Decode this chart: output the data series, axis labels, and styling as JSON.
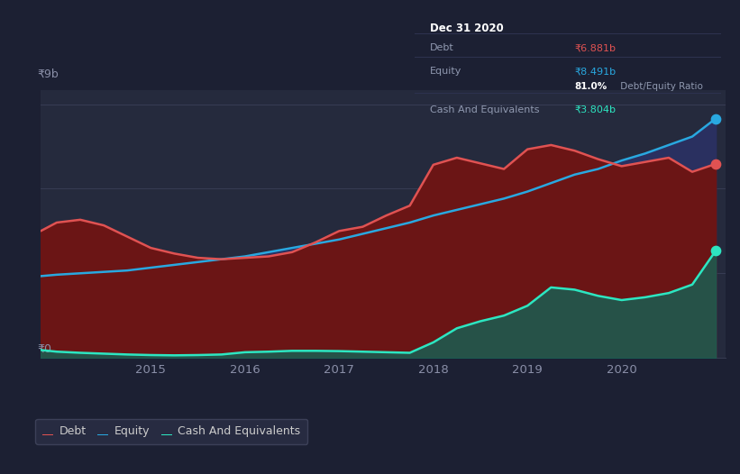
{
  "bg_color": "#1c2033",
  "plot_bg_color": "#252a3d",
  "grid_color": "#383d54",
  "debt_color": "#e05252",
  "equity_color": "#29a8e0",
  "cash_color": "#2de6c1",
  "debt_fill": "#6b1515",
  "equity_fill": "#2a3060",
  "cash_fill": "#1a5e52",
  "ylabel_9b": "₹9b",
  "ylabel_0": "₹0",
  "ylim": [
    0,
    9.5
  ],
  "xlim": [
    2013.83,
    2021.1
  ],
  "tooltip": {
    "date": "Dec 31 2020",
    "debt_label": "Debt",
    "debt_val": "₹6.881b",
    "equity_label": "Equity",
    "equity_val": "₹8.491b",
    "ratio": "81.0%",
    "ratio_suffix": " Debt/Equity Ratio",
    "cash_label": "Cash And Equivalents",
    "cash_val": "₹3.804b"
  },
  "dates": [
    2013.83,
    2014.0,
    2014.25,
    2014.5,
    2014.75,
    2015.0,
    2015.25,
    2015.5,
    2015.75,
    2016.0,
    2016.25,
    2016.5,
    2016.75,
    2017.0,
    2017.25,
    2017.5,
    2017.75,
    2018.0,
    2018.25,
    2018.5,
    2018.75,
    2019.0,
    2019.25,
    2019.5,
    2019.75,
    2020.0,
    2020.25,
    2020.5,
    2020.75,
    2021.0
  ],
  "debt": [
    4.5,
    4.8,
    4.9,
    4.7,
    4.3,
    3.9,
    3.7,
    3.55,
    3.5,
    3.55,
    3.6,
    3.75,
    4.1,
    4.5,
    4.65,
    5.05,
    5.4,
    6.85,
    7.1,
    6.9,
    6.7,
    7.4,
    7.55,
    7.35,
    7.05,
    6.8,
    6.95,
    7.1,
    6.6,
    6.881
  ],
  "equity": [
    2.9,
    2.95,
    3.0,
    3.05,
    3.1,
    3.2,
    3.3,
    3.4,
    3.5,
    3.6,
    3.75,
    3.9,
    4.05,
    4.2,
    4.4,
    4.6,
    4.8,
    5.05,
    5.25,
    5.45,
    5.65,
    5.9,
    6.2,
    6.5,
    6.7,
    7.0,
    7.25,
    7.55,
    7.85,
    8.491
  ],
  "cash": [
    0.28,
    0.22,
    0.18,
    0.15,
    0.12,
    0.1,
    0.09,
    0.1,
    0.12,
    0.2,
    0.22,
    0.25,
    0.25,
    0.24,
    0.22,
    0.2,
    0.18,
    0.55,
    1.05,
    1.3,
    1.5,
    1.85,
    2.5,
    2.42,
    2.2,
    2.05,
    2.15,
    2.3,
    2.6,
    3.804
  ],
  "xticks": [
    2015.0,
    2016.0,
    2017.0,
    2018.0,
    2019.0,
    2020.0
  ],
  "xticklabels": [
    "2015",
    "2016",
    "2017",
    "2018",
    "2019",
    "2020"
  ],
  "legend": [
    {
      "label": "Debt",
      "color": "#e05252"
    },
    {
      "label": "Equity",
      "color": "#29a8e0"
    },
    {
      "label": "Cash And Equivalents",
      "color": "#2de6c1"
    }
  ]
}
